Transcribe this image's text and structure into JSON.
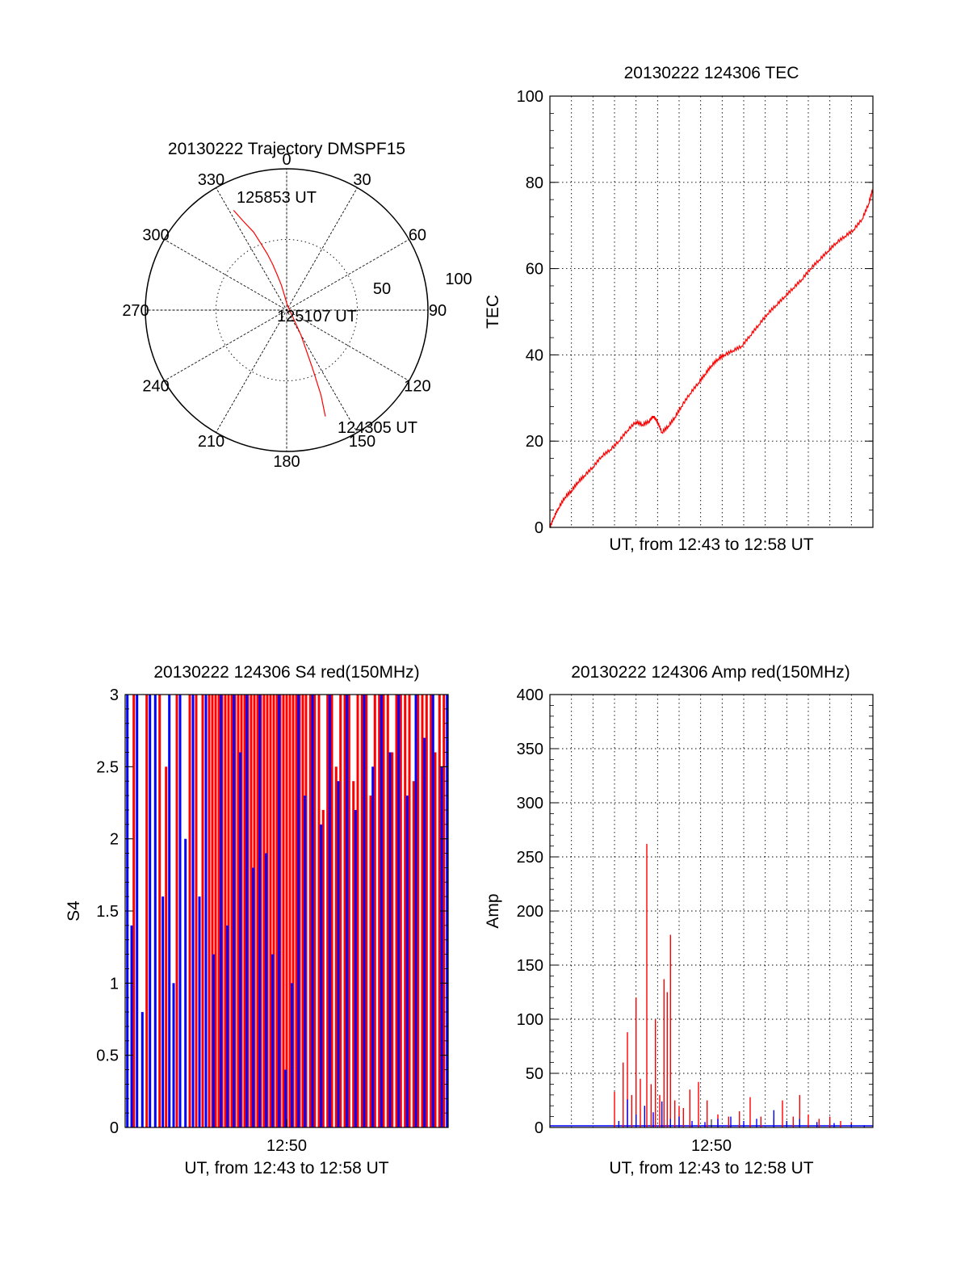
{
  "colors": {
    "red": "#ff0000",
    "blue": "#0000ff",
    "axis": "#000000"
  },
  "chart_data": [
    {
      "type": "polar",
      "title": "20130222 Trajectory DMSPF15",
      "angle_labels": [
        "0",
        "30",
        "60",
        "90",
        "120",
        "150",
        "180",
        "210",
        "240",
        "270",
        "300",
        "330"
      ],
      "angles_deg": [
        0,
        30,
        60,
        90,
        120,
        150,
        180,
        210,
        240,
        270,
        300,
        330
      ],
      "radius_labels": [
        "50",
        "100"
      ],
      "rlim": [
        0,
        100
      ],
      "annotations": [
        "125853 UT",
        "125107 UT",
        "124305 UT"
      ],
      "trajectory": {
        "color": "red",
        "azimuth_deg": [
          332,
          334,
          337,
          339,
          341,
          343,
          345,
          348,
          352,
          0,
          45,
          150,
          156,
          158,
          160
        ],
        "radius": [
          80,
          70,
          60,
          50,
          42,
          34,
          26,
          18,
          10,
          5,
          2,
          20,
          45,
          65,
          80
        ]
      }
    },
    {
      "type": "line",
      "title": "20130222 124306 TEC",
      "xlabel": "UT, from 12:43 to 12:58 UT",
      "ylabel": "TEC",
      "xlim": [
        0,
        15
      ],
      "ylim": [
        0,
        100
      ],
      "yticks": [
        "0",
        "20",
        "40",
        "60",
        "80",
        "100"
      ],
      "series": [
        {
          "color": "red",
          "x": [
            0,
            0.2,
            0.4,
            0.7,
            1.0,
            1.3,
            1.6,
            2.0,
            2.4,
            2.8,
            3.2,
            3.6,
            4.0,
            4.3,
            4.6,
            4.8,
            5.0,
            5.2,
            5.5,
            5.8,
            6.1,
            6.5,
            6.9,
            7.2,
            7.5,
            7.8,
            8.1,
            8.5,
            8.9,
            9.3,
            9.7,
            10.1,
            10.5,
            10.9,
            11.3,
            11.7,
            12.1,
            12.5,
            12.9,
            13.3,
            13.7,
            14.1,
            14.5,
            14.8,
            15.0
          ],
          "y": [
            0,
            2.5,
            4.5,
            7,
            8.5,
            10.5,
            12,
            14,
            16.5,
            18,
            20,
            22.5,
            24.5,
            23.8,
            24.6,
            25.8,
            24.5,
            22,
            23.5,
            25.5,
            28,
            31,
            33.5,
            35.5,
            37.5,
            39,
            40,
            41,
            42,
            44.5,
            47,
            49.5,
            51.5,
            53.5,
            55.5,
            57.5,
            60,
            62,
            64,
            66,
            67.5,
            69,
            71.5,
            75,
            78.5
          ]
        }
      ]
    },
    {
      "type": "bar",
      "title": "20130222 124306 S4 red(150MHz)",
      "xlabel": "UT, from 12:43 to 12:58 UT",
      "ylabel": "S4",
      "xlim": [
        0,
        15
      ],
      "ylim": [
        0,
        3
      ],
      "xticks": [
        "12:50"
      ],
      "xtick_values": [
        7.5
      ],
      "yticks": [
        "0",
        "0.5",
        "1",
        "1.5",
        "2",
        "2.5",
        "3"
      ],
      "series": [
        {
          "color": "red",
          "x": [
            0.4,
            1.0,
            1.6,
            1.9,
            2.4,
            3.0,
            3.3,
            3.6,
            3.9,
            4.05,
            4.2,
            4.35,
            4.5,
            4.65,
            4.8,
            4.95,
            5.1,
            5.25,
            5.4,
            5.55,
            5.7,
            5.85,
            6.0,
            6.15,
            6.3,
            6.45,
            6.6,
            6.75,
            6.9,
            7.05,
            7.2,
            7.35,
            7.5,
            7.65,
            7.8,
            7.95,
            8.1,
            8.25,
            8.4,
            8.6,
            8.8,
            9.0,
            9.2,
            9.4,
            9.6,
            9.8,
            10.0,
            10.2,
            10.4,
            10.6,
            10.8,
            11.0,
            11.2,
            11.4,
            11.6,
            11.8,
            12.0,
            12.2,
            12.4,
            12.6,
            12.8,
            13.0,
            13.2,
            13.4,
            13.6,
            13.8,
            14.0,
            14.2,
            14.4,
            14.6,
            14.8
          ],
          "values": [
            3,
            3,
            3,
            2.5,
            3,
            3,
            3,
            3,
            3,
            3,
            3,
            3,
            3,
            3,
            3,
            3,
            3,
            3,
            3,
            3,
            3,
            3,
            3,
            3,
            3,
            3,
            3,
            3,
            3,
            3,
            3,
            3,
            3,
            3,
            3,
            3,
            3,
            3,
            3,
            3,
            3,
            3,
            2.2,
            3,
            3,
            2.5,
            3,
            3,
            3,
            2.4,
            3,
            3,
            3,
            2.3,
            3,
            3,
            3,
            3,
            2.6,
            3,
            3,
            3,
            3,
            2.4,
            3,
            3,
            3,
            3,
            2.6,
            3,
            3
          ]
        },
        {
          "color": "blue",
          "x": [
            0.1,
            0.3,
            0.55,
            0.8,
            1.15,
            1.4,
            1.75,
            2.05,
            2.25,
            2.55,
            2.8,
            3.15,
            3.45,
            3.75,
            4.1,
            4.45,
            4.75,
            5.05,
            5.35,
            5.65,
            5.95,
            6.25,
            6.55,
            6.85,
            7.15,
            7.45,
            7.75,
            8.05,
            8.35,
            8.7,
            9.1,
            9.5,
            9.9,
            10.3,
            10.7,
            11.1,
            11.5,
            11.9,
            12.3,
            12.7,
            13.1,
            13.5,
            13.9,
            14.3,
            14.7,
            14.95
          ],
          "values": [
            3,
            1.4,
            3,
            0.8,
            3,
            3,
            1.6,
            3,
            1.0,
            3,
            2.0,
            3,
            1.6,
            3,
            1.2,
            3,
            1.4,
            3,
            2.6,
            3,
            1.8,
            3,
            1.9,
            1.2,
            3,
            0.4,
            1.0,
            3,
            2.3,
            3,
            2.1,
            3,
            2.4,
            3,
            2.2,
            3,
            2.5,
            3,
            2.6,
            3,
            2.3,
            3,
            2.7,
            3,
            2.5,
            3
          ]
        }
      ]
    },
    {
      "type": "bar",
      "title": "20130222 124306 Amp red(150MHz)",
      "xlabel": "UT, from 12:43 to 12:58 UT",
      "ylabel": "Amp",
      "xlim": [
        0,
        15
      ],
      "ylim": [
        0,
        400
      ],
      "xticks": [
        "12:50"
      ],
      "xtick_values": [
        7.5
      ],
      "yticks": [
        "0",
        "50",
        "100",
        "150",
        "200",
        "250",
        "300",
        "350",
        "400"
      ],
      "series": [
        {
          "color": "red",
          "x": [
            3.0,
            3.4,
            3.6,
            3.8,
            4.0,
            4.2,
            4.5,
            4.7,
            4.9,
            5.1,
            5.3,
            5.45,
            5.6,
            5.8,
            6.0,
            6.2,
            6.5,
            6.9,
            7.3,
            7.8,
            8.3,
            8.8,
            9.3,
            9.8,
            10.4,
            10.8,
            11.3,
            11.6,
            12.0,
            12.5,
            13.0,
            13.5,
            14.0
          ],
          "values": [
            33,
            60,
            88,
            30,
            120,
            45,
            262,
            40,
            100,
            30,
            137,
            125,
            178,
            25,
            20,
            18,
            35,
            42,
            25,
            12,
            10,
            15,
            28,
            10,
            8,
            25,
            10,
            30,
            12,
            8,
            10,
            6,
            5
          ]
        },
        {
          "color": "blue",
          "x": [
            3.2,
            3.6,
            4.0,
            4.4,
            4.8,
            5.2,
            5.6,
            6.0,
            6.6,
            7.2,
            7.8,
            8.4,
            9.0,
            9.6,
            10.4,
            11.0,
            11.6,
            12.4,
            13.2,
            14.0,
            14.6
          ],
          "values": [
            6,
            26,
            12,
            20,
            14,
            24,
            8,
            10,
            6,
            5,
            8,
            10,
            6,
            8,
            16,
            6,
            8,
            5,
            4,
            3,
            2
          ]
        }
      ]
    }
  ]
}
